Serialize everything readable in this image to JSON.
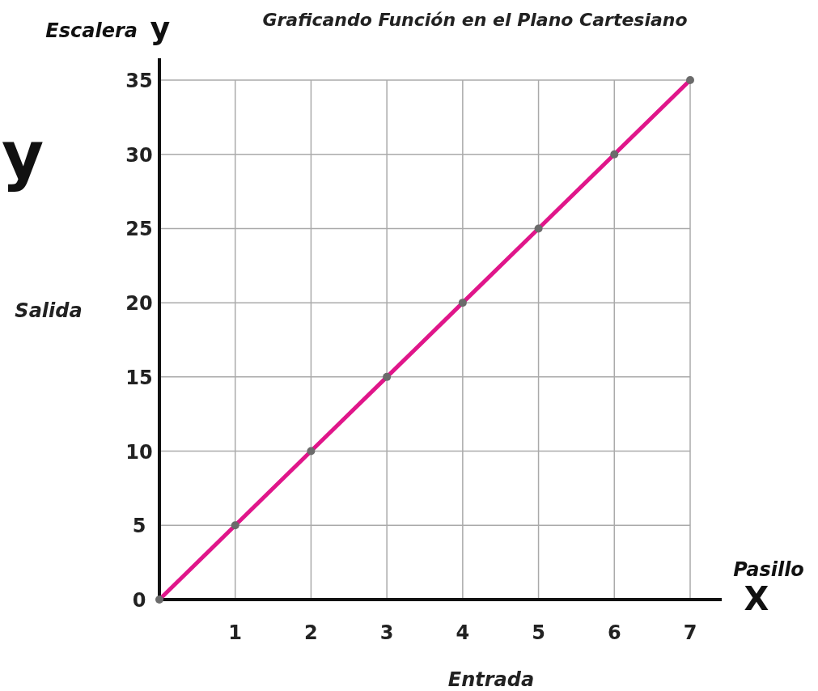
{
  "chart_data": {
    "type": "line",
    "title": "Graficando Función en el Plano Cartesiano",
    "xlabel": "Entrada",
    "ylabel": "Salida",
    "annotations": [
      "Escalera",
      "y",
      "Pasillo",
      "X",
      "y"
    ],
    "x": [
      0,
      1,
      2,
      3,
      4,
      5,
      6,
      7
    ],
    "series": [
      {
        "color": "#e0168a",
        "values": [
          0,
          5,
          10,
          15,
          20,
          25,
          30,
          35
        ]
      }
    ],
    "xlim": [
      0,
      7
    ],
    "xticks": [
      1,
      2,
      3,
      4,
      5,
      6,
      7
    ],
    "ylim": [
      0,
      35
    ],
    "yticks": [
      0,
      5,
      10,
      15,
      20,
      25,
      30,
      35
    ],
    "grid": true,
    "marker": "circle",
    "line_style": "solid"
  }
}
